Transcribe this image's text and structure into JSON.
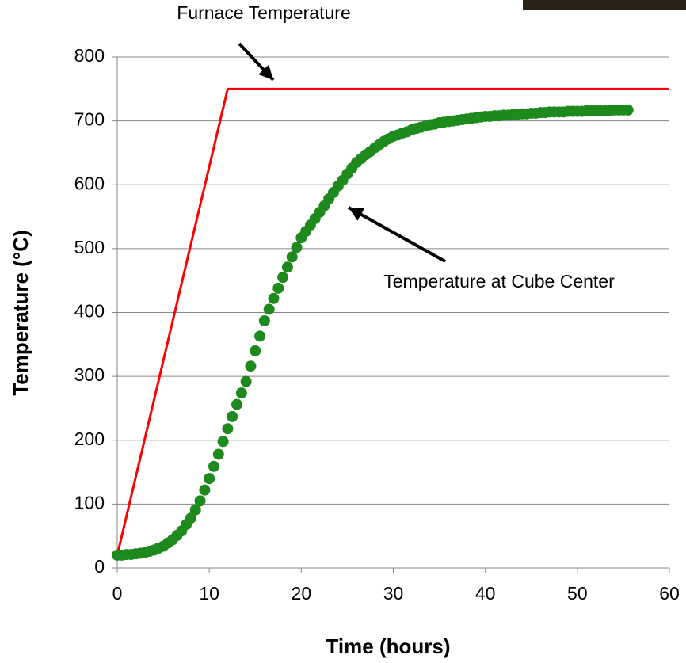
{
  "chart_data": {
    "type": "line",
    "xlabel": "Time (hours)",
    "ylabel": "Temperature (°C)",
    "xlim": [
      0,
      60
    ],
    "xticks": [
      0,
      10,
      20,
      30,
      40,
      50,
      60
    ],
    "ylim": [
      0,
      800
    ],
    "yticks": [
      0,
      100,
      200,
      300,
      400,
      500,
      600,
      700,
      800
    ],
    "grid": true,
    "series": [
      {
        "name": "Furnace Temperature",
        "color": "#ff0000",
        "style": "line",
        "x": [
          0,
          12,
          60
        ],
        "values": [
          20,
          750,
          750
        ]
      },
      {
        "name": "Temperature at Cube Center",
        "color": "#1e8a1e",
        "style": "markers",
        "x": [
          0,
          0.5,
          1,
          1.5,
          2,
          2.5,
          3,
          3.5,
          4,
          4.5,
          5,
          5.5,
          6,
          6.5,
          7,
          7.5,
          8,
          8.5,
          9,
          9.5,
          10,
          10.5,
          11,
          11.5,
          12,
          12.5,
          13,
          13.5,
          14,
          14.5,
          15,
          15.5,
          16,
          16.5,
          17,
          17.5,
          18,
          18.5,
          19,
          19.5,
          20,
          20.5,
          21,
          21.5,
          22,
          22.5,
          23,
          23.5,
          24,
          24.5,
          25,
          25.5,
          26,
          26.5,
          27,
          27.5,
          28,
          28.5,
          29,
          29.5,
          30,
          30.5,
          31,
          31.5,
          32,
          32.5,
          33,
          33.5,
          34,
          34.5,
          35,
          35.5,
          36,
          36.5,
          37,
          37.5,
          38,
          38.5,
          39,
          39.5,
          40,
          40.5,
          41,
          41.5,
          42,
          42.5,
          43,
          43.5,
          44,
          44.5,
          45,
          45.5,
          46,
          46.5,
          47,
          47.5,
          48,
          48.5,
          49,
          49.5,
          50,
          50.5,
          51,
          51.5,
          52,
          52.5,
          53,
          53.5,
          54,
          54.5,
          55,
          55.5
        ],
        "values": [
          20,
          20,
          21,
          21,
          22,
          23,
          24,
          26,
          28,
          31,
          34,
          39,
          44,
          51,
          58,
          68,
          78,
          91,
          105,
          122,
          140,
          159,
          178,
          198,
          218,
          237,
          256,
          274,
          292,
          316,
          340,
          363,
          387,
          405,
          422,
          438,
          455,
          471,
          487,
          502,
          517,
          527,
          537,
          547,
          557,
          567,
          578,
          588,
          598,
          607,
          617,
          626,
          635,
          641,
          647,
          652,
          658,
          663,
          668,
          672,
          676,
          678,
          681,
          683,
          686,
          688,
          690,
          692,
          694,
          695,
          697,
          698,
          699,
          700,
          701,
          702,
          703,
          704,
          705,
          706,
          707,
          707,
          708,
          708,
          709,
          709,
          710,
          710,
          711,
          711,
          712,
          712,
          713,
          713,
          714,
          714,
          714,
          714,
          715,
          715,
          715,
          715,
          716,
          716,
          716,
          716,
          716,
          716,
          717,
          717,
          717,
          717
        ]
      }
    ]
  }
}
